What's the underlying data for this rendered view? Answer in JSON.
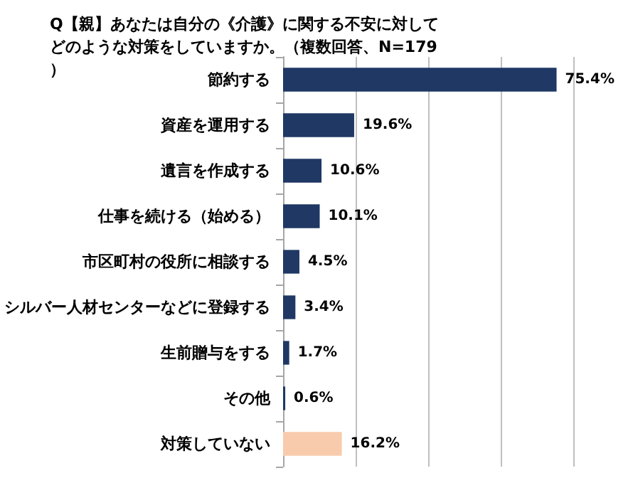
{
  "chart_data": {
    "type": "bar",
    "orientation": "horizontal",
    "title": "Q【親】あなたは自分の《介護》に関する不安に対してどのような対策をしていますか。（複数回答、N=179）",
    "categories": [
      "節約する",
      "資産を運用する",
      "遺言を作成する",
      "仕事を続ける（始める）",
      "市区町村の役所に相談する",
      "シルバー人材センターなどに登録する",
      "生前贈与をする",
      "その他",
      "対策していない"
    ],
    "values": [
      75.4,
      19.6,
      10.6,
      10.1,
      4.5,
      3.4,
      1.7,
      0.6,
      16.2
    ],
    "colors": [
      "#1f3864",
      "#1f3864",
      "#1f3864",
      "#1f3864",
      "#1f3864",
      "#1f3864",
      "#1f3864",
      "#1f3864",
      "#f8cbad"
    ],
    "value_labels": [
      "75.4%",
      "19.6%",
      "10.6%",
      "10.1%",
      "4.5%",
      "3.4%",
      "1.7%",
      "0.6%",
      "16.2%"
    ],
    "xlim": [
      0,
      80
    ],
    "xticks": [
      {
        "value": 0,
        "label": null
      },
      {
        "value": 20,
        "label": null
      },
      {
        "value": 40,
        "label": null
      },
      {
        "value": 60,
        "label": null
      },
      {
        "value": 80,
        "label": null
      }
    ],
    "grid": "x",
    "tick_labels": "y"
  }
}
